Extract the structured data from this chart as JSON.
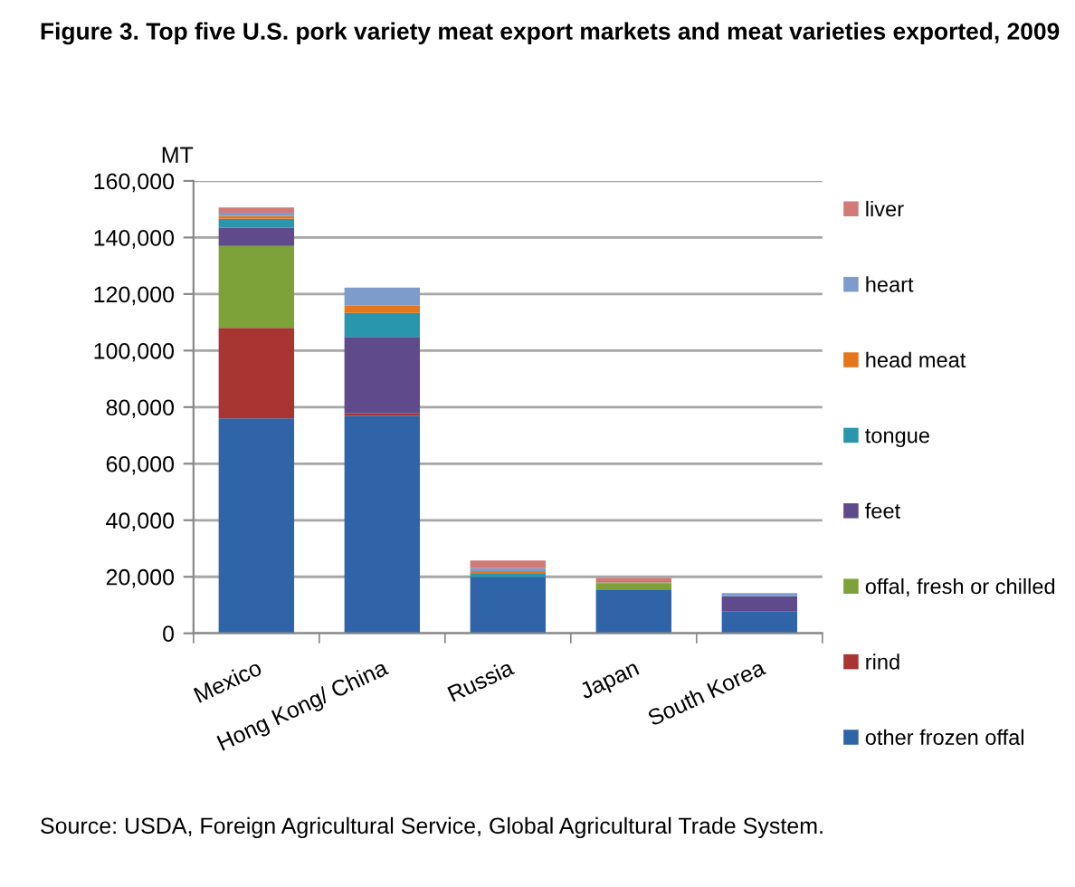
{
  "chart_data": {
    "type": "bar",
    "stacked": true,
    "title": "Figure 3. Top five U.S. pork variety meat export markets and meat varieties exported, 2009",
    "ylabel": "MT",
    "categories": [
      "Mexico",
      "Hong Kong/ China",
      "Russia",
      "Japan",
      "South Korea"
    ],
    "series": [
      {
        "name": "other frozen offal",
        "color": "#2f64a8",
        "values": [
          76000,
          77000,
          20000,
          15500,
          7700
        ]
      },
      {
        "name": "rind",
        "color": "#a83532",
        "values": [
          32000,
          800,
          0,
          0,
          0
        ]
      },
      {
        "name": "offal, fresh or chilled",
        "color": "#7da23a",
        "values": [
          29000,
          0,
          0,
          2200,
          0
        ]
      },
      {
        "name": "feet",
        "color": "#5f4a8b",
        "values": [
          6400,
          27000,
          0,
          0,
          5400
        ]
      },
      {
        "name": "tongue",
        "color": "#2a96ad",
        "values": [
          3200,
          8500,
          1000,
          300,
          0
        ]
      },
      {
        "name": "head meat",
        "color": "#e5761c",
        "values": [
          1000,
          2600,
          1000,
          500,
          0
        ]
      },
      {
        "name": "heart",
        "color": "#7d9bcb",
        "values": [
          1200,
          6400,
          1000,
          0,
          1100
        ]
      },
      {
        "name": "liver",
        "color": "#d27a78",
        "values": [
          1800,
          0,
          2800,
          1100,
          0
        ]
      }
    ],
    "ylim": [
      0,
      160000
    ],
    "yticks": [
      0,
      {
        "value": 20000,
        "label": "20,000"
      },
      {
        "value": 40000,
        "label": "40,000"
      },
      {
        "value": 60000,
        "label": "60,000"
      },
      {
        "value": 80000,
        "label": "80,000"
      },
      {
        "value": 100000,
        "label": "100,000"
      },
      {
        "value": 120000,
        "label": "120,000"
      },
      {
        "value": 140000,
        "label": "140,000"
      },
      {
        "value": 160000,
        "label": "160,000"
      }
    ],
    "grid": "y",
    "legend": "right",
    "annotations": [
      "Source: USDA, Foreign Agricultural Service, Global Agricultural Trade System."
    ]
  }
}
